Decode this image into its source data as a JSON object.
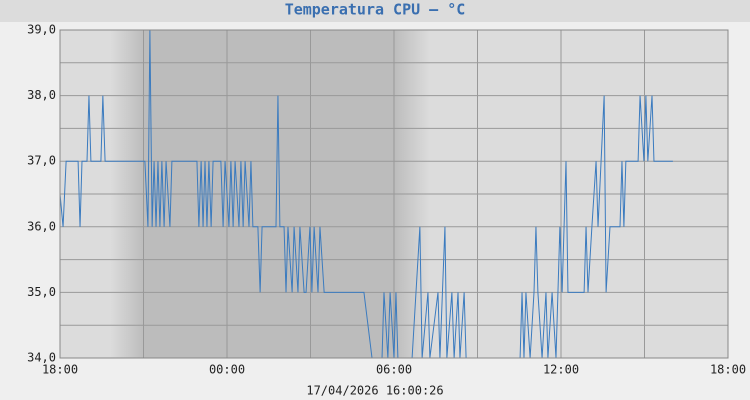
{
  "chart_data": {
    "type": "line",
    "title": "Temperatura CPU – °C",
    "footer": "17/04/2026 16:00:26",
    "color": "#3b7bbf",
    "grid": true,
    "xlim": [
      0,
      24
    ],
    "xticks": [
      {
        "value": 0,
        "label": "18:00"
      },
      {
        "value": 6,
        "label": "00:00"
      },
      {
        "value": 12,
        "label": "06:00"
      },
      {
        "value": 18,
        "label": "12:00"
      },
      {
        "value": 24,
        "label": "18:00"
      }
    ],
    "ylim": [
      34,
      39
    ],
    "yticks": [
      {
        "value": 34,
        "label": "34,0"
      },
      {
        "value": 35,
        "label": "35,0"
      },
      {
        "value": 36,
        "label": "36,0"
      },
      {
        "value": 37,
        "label": "37,0"
      },
      {
        "value": 38,
        "label": "38,0"
      },
      {
        "value": 39,
        "label": "39,0"
      }
    ],
    "x": [
      0,
      0.11,
      0.22,
      0.65,
      0.72,
      0.79,
      0.97,
      1.04,
      1.11,
      1.47,
      1.54,
      1.62,
      3.05,
      3.16,
      3.23,
      3.31,
      3.38,
      3.45,
      3.52,
      3.59,
      3.66,
      3.74,
      3.81,
      3.95,
      4.02,
      4.92,
      4.99,
      5.07,
      5.14,
      5.21,
      5.28,
      5.35,
      5.43,
      5.5,
      5.78,
      5.86,
      5.93,
      6.07,
      6.14,
      6.22,
      6.29,
      6.43,
      6.5,
      6.58,
      6.65,
      6.79,
      6.86,
      6.93,
      7.11,
      7.19,
      7.26,
      7.76,
      7.83,
      7.9,
      8.05,
      8.12,
      8.19,
      8.34,
      8.41,
      8.55,
      8.62,
      8.77,
      8.84,
      8.98,
      9.05,
      9.13,
      9.27,
      9.34,
      9.49,
      9.92,
      10.2,
      10.92,
      11.21,
      11.57,
      11.64,
      11.78,
      11.86,
      12,
      12.07,
      12.14,
      12.65,
      12.93,
      13.01,
      13.22,
      13.29,
      13.58,
      13.65,
      13.83,
      13.9,
      14.08,
      14.16,
      14.3,
      14.37,
      14.52,
      14.59,
      16.53,
      16.6,
      16.67,
      16.74,
      16.89,
      17.03,
      17.1,
      17.17,
      17.32,
      17.46,
      17.53,
      17.68,
      17.82,
      17.96,
      18.04,
      18.18,
      18.25,
      18.83,
      18.9,
      18.97,
      19.11,
      19.26,
      19.33,
      19.55,
      19.62,
      19.76,
      20.12,
      20.19,
      20.26,
      20.33,
      20.77,
      20.84,
      20.98,
      21.05,
      21.12,
      21.27,
      21.34,
      21.41,
      22.02
    ],
    "values": [
      36.5,
      36,
      37,
      37,
      36,
      37,
      37,
      38,
      37,
      37,
      38,
      37,
      37,
      36,
      39,
      36,
      37,
      36,
      37,
      36,
      37,
      36,
      37,
      36,
      37,
      37,
      36,
      37,
      36,
      37,
      36,
      37,
      36,
      37,
      37,
      36,
      37,
      36,
      37,
      36,
      37,
      36,
      37,
      36,
      37,
      36,
      37,
      36,
      36,
      35,
      36,
      36,
      38,
      36,
      36,
      35,
      36,
      35,
      36,
      35,
      36,
      35,
      35,
      36,
      35,
      36,
      35,
      36,
      35,
      35,
      35,
      35,
      34,
      34,
      35,
      34,
      35,
      34,
      35,
      34,
      34,
      36,
      34,
      35,
      34,
      35,
      34,
      36,
      34,
      35,
      34,
      35,
      34,
      35,
      34,
      34,
      35,
      34,
      35,
      34,
      35,
      36,
      35,
      34,
      35,
      34,
      35,
      34,
      36,
      35,
      37,
      35,
      35,
      36,
      35,
      36,
      37,
      36,
      38,
      35,
      36,
      36,
      37,
      36,
      37,
      37,
      38,
      37,
      38,
      37,
      38,
      37,
      37,
      37
    ]
  }
}
